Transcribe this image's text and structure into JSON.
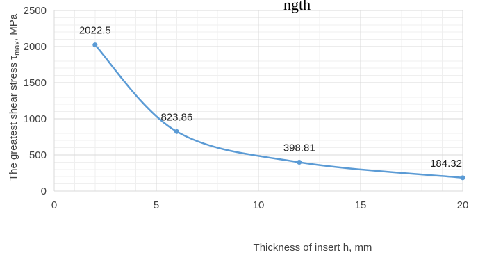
{
  "header": {
    "clipped_text": "ngth"
  },
  "chart_data": {
    "type": "line",
    "xlabel": "Thickness of insert h, mm",
    "ylabel": "The greatest shear stress τ",
    "ylabel_sub": "max",
    "ylabel_unit": ", MPa",
    "xlim": [
      0,
      20
    ],
    "ylim": [
      0,
      2500
    ],
    "xticks": [
      0,
      5,
      10,
      15,
      20
    ],
    "yticks": [
      0,
      500,
      1000,
      1500,
      2000,
      2500
    ],
    "grid": true,
    "smooth": true,
    "line_color": "#5b9bd5",
    "series": [
      {
        "x": [
          2,
          6,
          12,
          20
        ],
        "y": [
          2022.5,
          823.86,
          398.81,
          184.32
        ],
        "labels": [
          "2022.5",
          "823.86",
          "398.81",
          "184.32"
        ]
      }
    ]
  }
}
